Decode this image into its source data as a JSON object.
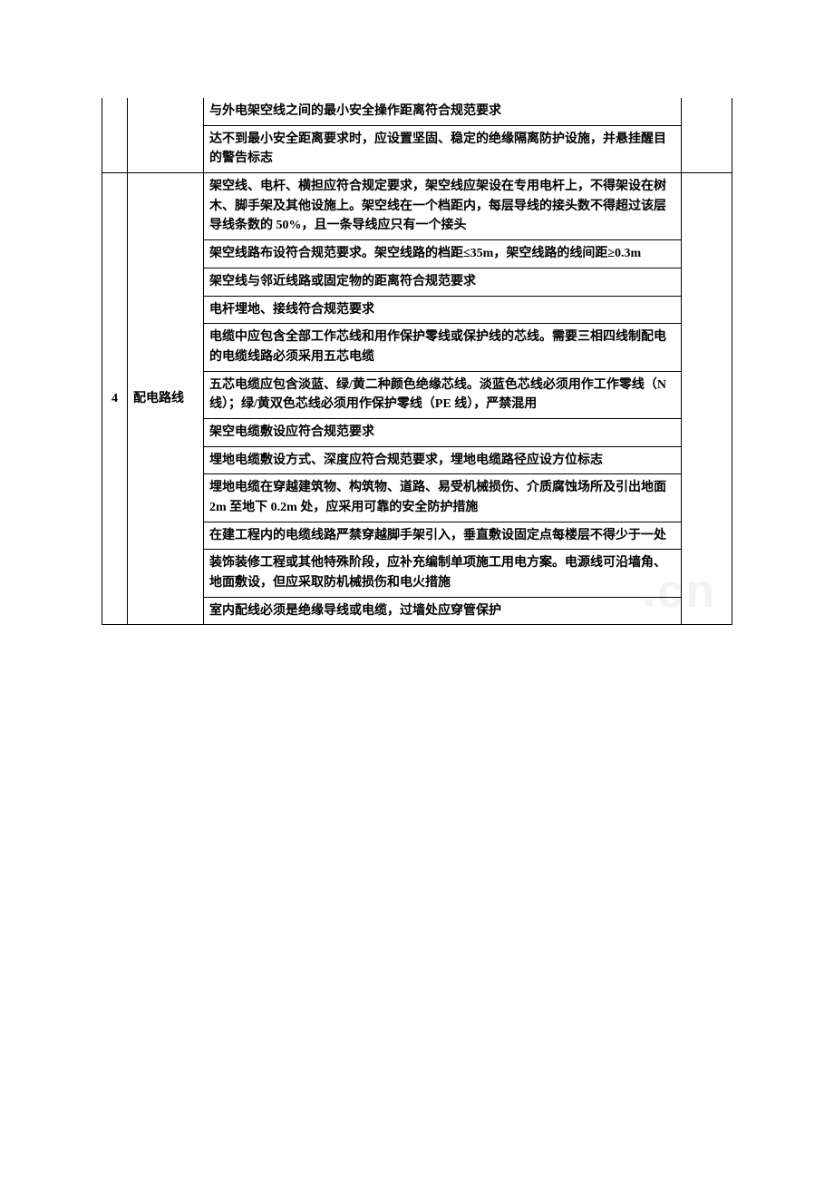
{
  "watermark": ".cn",
  "table": {
    "columns": {
      "num_width": 28,
      "category_width": 84,
      "last_width": 56
    },
    "border_color": "#000000",
    "font_size": 14,
    "font_weight": "bold",
    "sections": [
      {
        "num": "",
        "category": "",
        "rows": [
          "与外电架空线之间的最小安全操作距离符合规范要求",
          "达不到最小安全距离要求时，应设置坚固、稳定的绝缘隔离防护设施，并悬挂醒目的警告标志"
        ]
      },
      {
        "num": "4",
        "category": "配电路线",
        "rows": [
          "架空线、电杆、横担应符合规定要求，架空线应架设在专用电杆上，不得架设在树木、脚手架及其他设施上。架空线在一个档距内，每层导线的接头数不得超过该层导线条数的 50%，且一条导线应只有一个接头",
          "架空线路布设符合规范要求。架空线路的档距≤35m，架空线路的线间距≥0.3m",
          "架空线与邻近线路或固定物的距离符合规范要求",
          "电杆埋地、接线符合规范要求",
          "电缆中应包含全部工作芯线和用作保护零线或保护线的芯线。需要三相四线制配电的电缆线路必须采用五芯电缆",
          "五芯电缆应包含淡蓝、绿/黄二种颜色绝缘芯线。淡蓝色芯线必须用作工作零线（N 线）；绿/黄双色芯线必须用作保护零线（PE 线），严禁混用",
          "架空电缆敷设应符合规范要求",
          "埋地电缆敷设方式、深度应符合规范要求，埋地电缆路径应设方位标志",
          "埋地电缆在穿越建筑物、构筑物、道路、易受机械损伤、介质腐蚀场所及引出地面 2m 至地下 0.2m 处，应采用可靠的安全防护措施",
          "在建工程内的电缆线路严禁穿越脚手架引入，垂直敷设固定点每楼层不得少于一处",
          "装饰装修工程或其他特殊阶段，应补充编制单项施工用电方案。电源线可沿墙角、地面敷设，但应采取防机械损伤和电火措施",
          "室内配线必须是绝缘导线或电缆，过墙处应穿管保护"
        ]
      }
    ]
  }
}
